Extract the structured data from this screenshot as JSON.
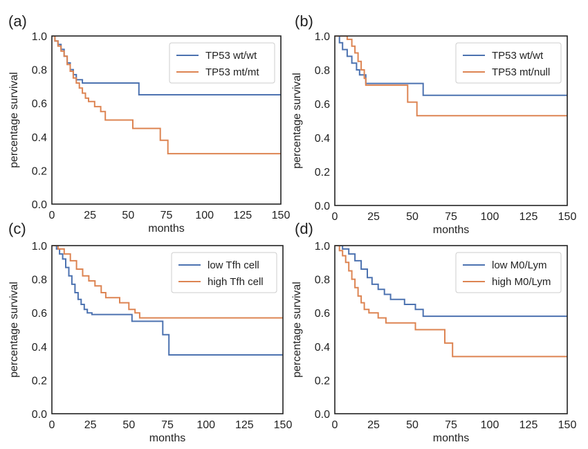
{
  "colors": {
    "series_1": "#4c72b0",
    "series_2": "#dd8452",
    "axis": "#222222",
    "text": "#222222"
  },
  "chart_data": [
    {
      "panel_label": "(a)",
      "type": "line",
      "step": true,
      "xlabel": "months",
      "ylabel": "percentage survival",
      "xlim": [
        0,
        150
      ],
      "ylim": [
        0,
        1.0
      ],
      "xticks": [
        "0",
        "25",
        "50",
        "75",
        "100",
        "125",
        "150"
      ],
      "yticks": [
        "0.0",
        "0.2",
        "0.4",
        "0.6",
        "0.8",
        "1.0"
      ],
      "grid": false,
      "legend": "top-right",
      "series": [
        {
          "name": "TP53 wt/wt",
          "color": "#4c72b0",
          "points": [
            [
              0,
              1.0
            ],
            [
              2,
              0.97
            ],
            [
              4,
              0.95
            ],
            [
              6,
              0.92
            ],
            [
              8,
              0.88
            ],
            [
              10,
              0.84
            ],
            [
              12,
              0.8
            ],
            [
              14,
              0.77
            ],
            [
              16,
              0.74
            ],
            [
              20,
              0.72
            ],
            [
              57,
              0.65
            ],
            [
              150,
              0.65
            ]
          ]
        },
        {
          "name": "TP53 mt/mt",
          "color": "#dd8452",
          "points": [
            [
              0,
              1.0
            ],
            [
              2,
              0.97
            ],
            [
              4,
              0.94
            ],
            [
              6,
              0.91
            ],
            [
              8,
              0.88
            ],
            [
              10,
              0.83
            ],
            [
              12,
              0.79
            ],
            [
              14,
              0.75
            ],
            [
              16,
              0.72
            ],
            [
              18,
              0.69
            ],
            [
              20,
              0.66
            ],
            [
              22,
              0.63
            ],
            [
              24,
              0.61
            ],
            [
              28,
              0.58
            ],
            [
              32,
              0.55
            ],
            [
              35,
              0.5
            ],
            [
              53,
              0.45
            ],
            [
              71,
              0.38
            ],
            [
              76,
              0.3
            ],
            [
              150,
              0.3
            ]
          ]
        }
      ]
    },
    {
      "panel_label": "(b)",
      "type": "line",
      "step": true,
      "xlabel": "months",
      "ylabel": "percentage survival",
      "xlim": [
        0,
        150
      ],
      "ylim": [
        0,
        1.0
      ],
      "xticks": [
        "0",
        "25",
        "50",
        "75",
        "100",
        "125",
        "150"
      ],
      "yticks": [
        "0.0",
        "0.2",
        "0.4",
        "0.6",
        "0.8",
        "1.0"
      ],
      "grid": false,
      "legend": "top-right",
      "series": [
        {
          "name": "TP53 wt/wt",
          "color": "#4c72b0",
          "points": [
            [
              0,
              1.0
            ],
            [
              3,
              0.96
            ],
            [
              5,
              0.92
            ],
            [
              8,
              0.88
            ],
            [
              11,
              0.84
            ],
            [
              14,
              0.8
            ],
            [
              16,
              0.77
            ],
            [
              20,
              0.72
            ],
            [
              57,
              0.65
            ],
            [
              150,
              0.65
            ]
          ]
        },
        {
          "name": "TP53 mt/null",
          "color": "#dd8452",
          "points": [
            [
              0,
              1.0
            ],
            [
              8,
              0.98
            ],
            [
              11,
              0.94
            ],
            [
              13,
              0.9
            ],
            [
              15,
              0.85
            ],
            [
              17,
              0.8
            ],
            [
              19,
              0.75
            ],
            [
              20,
              0.71
            ],
            [
              47,
              0.61
            ],
            [
              53,
              0.53
            ],
            [
              150,
              0.53
            ]
          ]
        }
      ]
    },
    {
      "panel_label": "(c)",
      "type": "line",
      "step": true,
      "xlabel": "months",
      "ylabel": "percentage survival",
      "xlim": [
        0,
        150
      ],
      "ylim": [
        0,
        1.0
      ],
      "xticks": [
        "0",
        "25",
        "50",
        "75",
        "100",
        "125",
        "150"
      ],
      "yticks": [
        "0.0",
        "0.2",
        "0.4",
        "0.6",
        "0.8",
        "1.0"
      ],
      "grid": false,
      "legend": "top-right",
      "series": [
        {
          "name": "low Tfh cell",
          "color": "#4c72b0",
          "points": [
            [
              0,
              1.0
            ],
            [
              3,
              0.98
            ],
            [
              5,
              0.95
            ],
            [
              7,
              0.92
            ],
            [
              9,
              0.87
            ],
            [
              11,
              0.82
            ],
            [
              13,
              0.77
            ],
            [
              15,
              0.72
            ],
            [
              17,
              0.68
            ],
            [
              19,
              0.65
            ],
            [
              21,
              0.62
            ],
            [
              23,
              0.6
            ],
            [
              26,
              0.59
            ],
            [
              52,
              0.55
            ],
            [
              72,
              0.47
            ],
            [
              76,
              0.35
            ],
            [
              150,
              0.35
            ]
          ]
        },
        {
          "name": "high Tfh cell",
          "color": "#dd8452",
          "points": [
            [
              0,
              1.0
            ],
            [
              4,
              0.98
            ],
            [
              8,
              0.95
            ],
            [
              12,
              0.91
            ],
            [
              16,
              0.86
            ],
            [
              20,
              0.82
            ],
            [
              24,
              0.79
            ],
            [
              28,
              0.76
            ],
            [
              32,
              0.72
            ],
            [
              35,
              0.69
            ],
            [
              44,
              0.66
            ],
            [
              50,
              0.62
            ],
            [
              54,
              0.6
            ],
            [
              57,
              0.57
            ],
            [
              150,
              0.57
            ]
          ]
        }
      ]
    },
    {
      "panel_label": "(d)",
      "type": "line",
      "step": true,
      "xlabel": "months",
      "ylabel": "percentage survival",
      "xlim": [
        0,
        150
      ],
      "ylim": [
        0,
        1.0
      ],
      "xticks": [
        "0",
        "25",
        "50",
        "75",
        "100",
        "125",
        "150"
      ],
      "yticks": [
        "0.0",
        "0.2",
        "0.4",
        "0.6",
        "0.8",
        "1.0"
      ],
      "grid": false,
      "legend": "top-right",
      "series": [
        {
          "name": "low M0/Lym",
          "color": "#4c72b0",
          "points": [
            [
              0,
              1.0
            ],
            [
              5,
              0.98
            ],
            [
              9,
              0.95
            ],
            [
              13,
              0.91
            ],
            [
              17,
              0.86
            ],
            [
              21,
              0.81
            ],
            [
              24,
              0.77
            ],
            [
              28,
              0.74
            ],
            [
              32,
              0.71
            ],
            [
              36,
              0.68
            ],
            [
              45,
              0.65
            ],
            [
              52,
              0.62
            ],
            [
              57,
              0.58
            ],
            [
              150,
              0.58
            ]
          ]
        },
        {
          "name": "high M0/Lym",
          "color": "#dd8452",
          "points": [
            [
              0,
              1.0
            ],
            [
              3,
              0.97
            ],
            [
              5,
              0.94
            ],
            [
              7,
              0.9
            ],
            [
              9,
              0.85
            ],
            [
              11,
              0.8
            ],
            [
              13,
              0.75
            ],
            [
              15,
              0.7
            ],
            [
              17,
              0.66
            ],
            [
              19,
              0.62
            ],
            [
              22,
              0.6
            ],
            [
              28,
              0.57
            ],
            [
              33,
              0.54
            ],
            [
              52,
              0.5
            ],
            [
              71,
              0.42
            ],
            [
              76,
              0.34
            ],
            [
              150,
              0.34
            ]
          ]
        }
      ]
    }
  ]
}
